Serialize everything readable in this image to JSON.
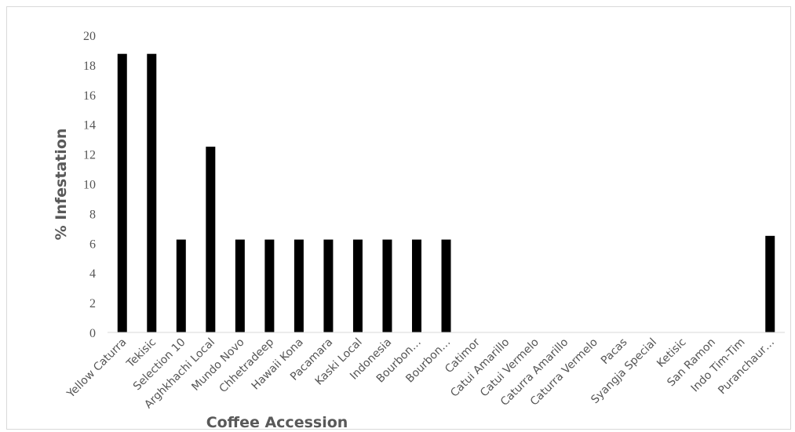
{
  "chart_data": {
    "type": "bar",
    "title": "",
    "xlabel": "Coffee Accession",
    "ylabel": "% Infestation",
    "ylim": [
      0,
      20
    ],
    "yticks": [
      "0",
      "2",
      "4",
      "6",
      "8",
      "10",
      "12",
      "14",
      "16",
      "18",
      "20"
    ],
    "grid": false,
    "legend": "none",
    "bar_color": "#000000",
    "categories": [
      "Yellow Caturra",
      "Tekisic",
      "Selection 10",
      "Arghkhachi Local",
      "Mundo Novo",
      "Chhetradeep",
      "Hawaii Kona",
      "Pacamara",
      "Kaski Local",
      "Indonesia",
      "Bourbon…",
      "Bourbon…",
      "Catimor",
      "Catui Amarillo",
      "Catui Vermelo",
      "Caturra Amarillo",
      "Caturra Vermelo",
      "Pacas",
      "Syangja Special",
      "Ketisic",
      "San Ramon",
      "Indo Tim-Tim",
      "Puranchaur…"
    ],
    "values": [
      18.75,
      18.75,
      6.25,
      12.5,
      6.25,
      6.25,
      6.25,
      6.25,
      6.25,
      6.25,
      6.25,
      6.25,
      0,
      0,
      0,
      0,
      0,
      0,
      0,
      0,
      0,
      0,
      6.5
    ]
  }
}
